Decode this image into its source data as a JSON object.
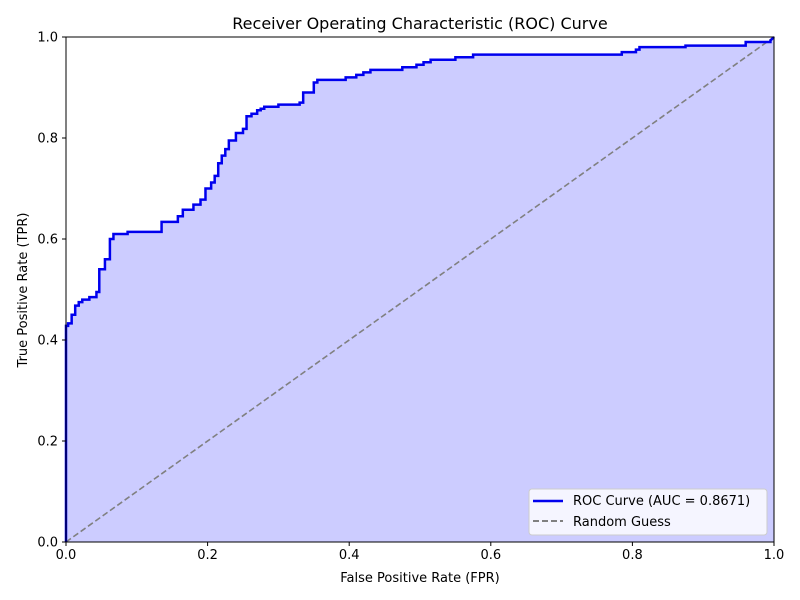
{
  "chart_data": {
    "type": "line",
    "title": "Receiver Operating Characteristic (ROC) Curve",
    "xlabel": "False Positive Rate (FPR)",
    "ylabel": "True Positive Rate (TPR)",
    "xlim": [
      0.0,
      1.0
    ],
    "ylim": [
      0.0,
      1.0
    ],
    "xticks": [
      "0.0",
      "0.2",
      "0.4",
      "0.6",
      "0.8",
      "1.0"
    ],
    "yticks": [
      "0.0",
      "0.2",
      "0.4",
      "0.6",
      "0.8",
      "1.0"
    ],
    "grid": false,
    "legend_position": "lower-right",
    "series": [
      {
        "name": "ROC Curve (AUC = 0.8671)",
        "color": "#0000ee",
        "style": "solid",
        "fill": "#ccccff",
        "x": [
          0.0,
          0.0,
          0.003,
          0.003,
          0.008,
          0.008,
          0.013,
          0.013,
          0.018,
          0.018,
          0.023,
          0.023,
          0.033,
          0.033,
          0.043,
          0.043,
          0.047,
          0.047,
          0.055,
          0.055,
          0.062,
          0.062,
          0.067,
          0.067,
          0.087,
          0.087,
          0.135,
          0.135,
          0.158,
          0.158,
          0.165,
          0.165,
          0.18,
          0.18,
          0.19,
          0.19,
          0.197,
          0.197,
          0.205,
          0.205,
          0.21,
          0.21,
          0.215,
          0.215,
          0.22,
          0.22,
          0.225,
          0.225,
          0.23,
          0.23,
          0.24,
          0.24,
          0.25,
          0.25,
          0.255,
          0.255,
          0.262,
          0.262,
          0.27,
          0.27,
          0.275,
          0.275,
          0.28,
          0.28,
          0.3,
          0.3,
          0.33,
          0.33,
          0.335,
          0.335,
          0.35,
          0.35,
          0.355,
          0.355,
          0.395,
          0.395,
          0.41,
          0.41,
          0.42,
          0.42,
          0.43,
          0.43,
          0.475,
          0.475,
          0.495,
          0.495,
          0.505,
          0.505,
          0.515,
          0.515,
          0.55,
          0.55,
          0.575,
          0.575,
          0.785,
          0.785,
          0.805,
          0.805,
          0.81,
          0.81,
          0.875,
          0.875,
          0.96,
          0.96,
          0.995,
          0.995,
          1.0
        ],
        "y": [
          0.0,
          0.428,
          0.428,
          0.433,
          0.433,
          0.45,
          0.45,
          0.468,
          0.468,
          0.475,
          0.475,
          0.48,
          0.48,
          0.485,
          0.485,
          0.495,
          0.495,
          0.54,
          0.54,
          0.56,
          0.56,
          0.6,
          0.6,
          0.61,
          0.61,
          0.614,
          0.614,
          0.634,
          0.634,
          0.645,
          0.645,
          0.658,
          0.658,
          0.668,
          0.668,
          0.678,
          0.678,
          0.7,
          0.7,
          0.712,
          0.712,
          0.725,
          0.725,
          0.75,
          0.75,
          0.765,
          0.765,
          0.778,
          0.778,
          0.795,
          0.795,
          0.81,
          0.81,
          0.818,
          0.818,
          0.843,
          0.843,
          0.848,
          0.848,
          0.855,
          0.855,
          0.858,
          0.858,
          0.862,
          0.862,
          0.866,
          0.866,
          0.87,
          0.87,
          0.89,
          0.89,
          0.91,
          0.91,
          0.915,
          0.915,
          0.92,
          0.92,
          0.925,
          0.925,
          0.93,
          0.93,
          0.935,
          0.935,
          0.94,
          0.94,
          0.945,
          0.945,
          0.95,
          0.95,
          0.955,
          0.955,
          0.96,
          0.96,
          0.965,
          0.965,
          0.97,
          0.97,
          0.975,
          0.975,
          0.98,
          0.98,
          0.983,
          0.983,
          0.99,
          0.99,
          0.993,
          1.0
        ]
      },
      {
        "name": "Random Guess",
        "color": "#808080",
        "style": "dashed",
        "x": [
          0.0,
          1.0
        ],
        "y": [
          0.0,
          1.0
        ]
      }
    ]
  }
}
